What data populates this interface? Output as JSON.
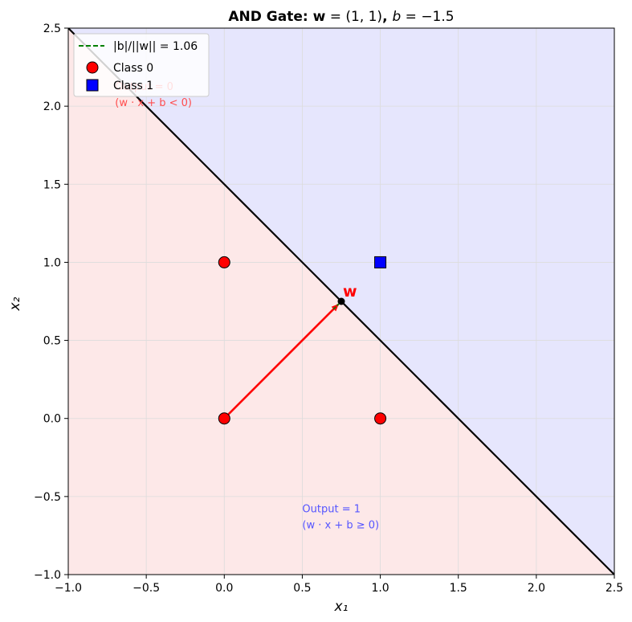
{
  "chart_data": {
    "type": "scatter",
    "title": "AND Gate: w = (1, 1), b = −1.5",
    "xlabel": "x₁",
    "ylabel": "x₂",
    "xlim": [
      -1.0,
      2.5
    ],
    "ylim": [
      -1.0,
      2.5
    ],
    "xticks": [
      -1.0,
      -0.5,
      0.0,
      0.5,
      1.0,
      1.5,
      2.0,
      2.5
    ],
    "yticks": [
      -1.0,
      -0.5,
      0.0,
      0.5,
      1.0,
      1.5,
      2.0,
      2.5
    ],
    "xtick_labels": [
      "−1.0",
      "−0.5",
      "0.0",
      "0.5",
      "1.0",
      "1.5",
      "2.0",
      "2.5"
    ],
    "ytick_labels": [
      "−1.0",
      "−0.5",
      "0.0",
      "0.5",
      "1.0",
      "1.5",
      "2.0",
      "2.5"
    ],
    "grid": true,
    "legend_position": "top-left",
    "weights": [
      1,
      1
    ],
    "bias": -1.5,
    "decision_boundary": {
      "equation": "x1 + x2 = 1.5",
      "color": "#000000"
    },
    "regions": [
      {
        "name": "output-0",
        "color": "#fde8e8",
        "condition": "x1 + x2 < 1.5"
      },
      {
        "name": "output-1",
        "color": "#e6e6fd",
        "condition": "x1 + x2 >= 1.5"
      }
    ],
    "series": [
      {
        "name": "Class 0",
        "marker": "circle",
        "color": "#ff0000",
        "points": [
          [
            0,
            0
          ],
          [
            0,
            1
          ],
          [
            1,
            0
          ]
        ]
      },
      {
        "name": "Class 1",
        "marker": "square",
        "color": "#0000ff",
        "points": [
          [
            1,
            1
          ]
        ]
      }
    ],
    "weight_vector": {
      "from": [
        0,
        0
      ],
      "to": [
        0.73,
        0.73
      ],
      "label": "w",
      "color": "#ff0000"
    },
    "distance_line": {
      "name": "|b|/||w|| = 1.06",
      "from": [
        0.7,
        0.7
      ],
      "to": [
        0.75,
        0.75
      ],
      "color": "#008000",
      "style": "dashed"
    },
    "foot_point": {
      "x": 0.75,
      "y": 0.75,
      "color": "#000000"
    },
    "annotations": [
      {
        "lines": [
          "Output = 0",
          "(w · x + b < 0)"
        ],
        "x": -0.7,
        "y": 2.0,
        "color": "#ff4d4d"
      },
      {
        "lines": [
          "Output = 1",
          "(w · x + b ≥ 0)"
        ],
        "x": 0.5,
        "y": -0.6,
        "color": "#5555ff"
      }
    ]
  }
}
